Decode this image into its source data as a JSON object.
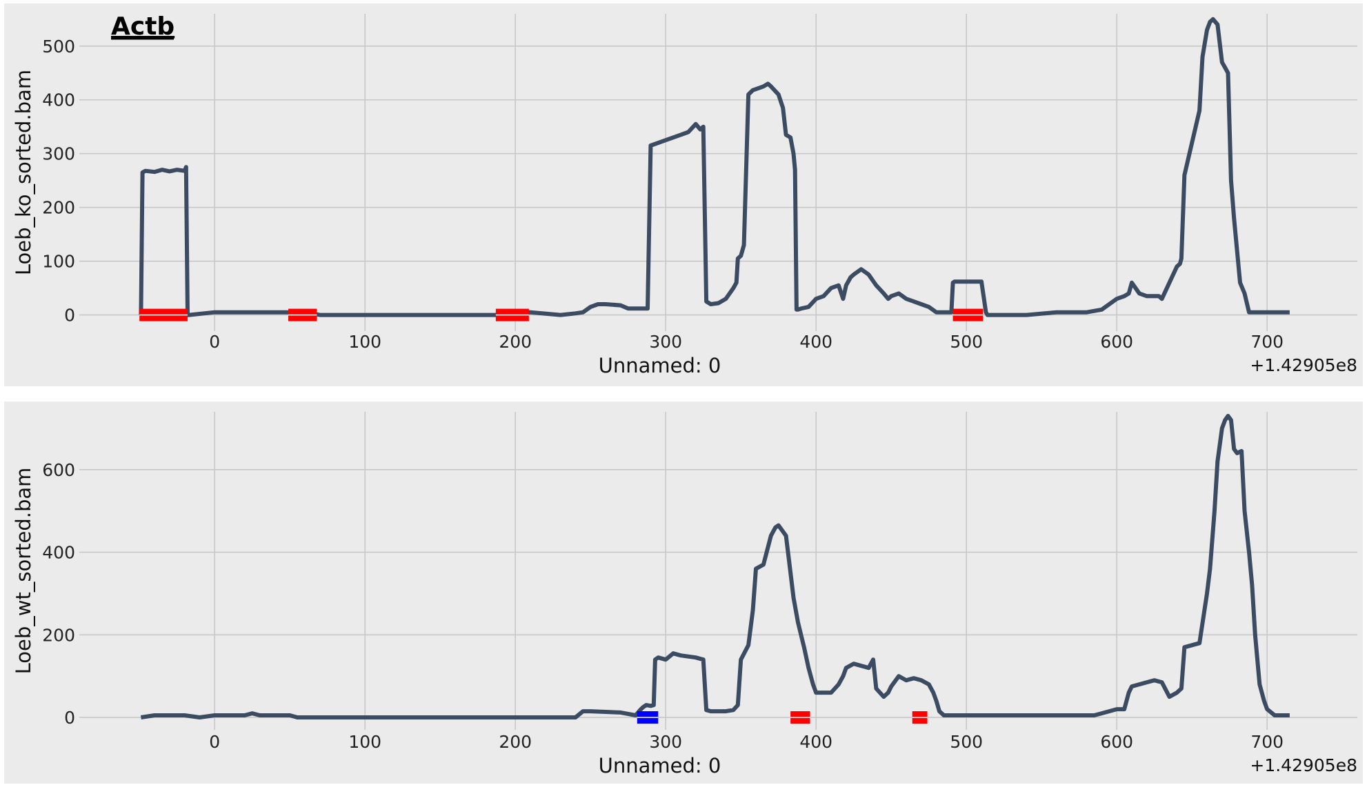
{
  "title": "Actb",
  "chart_data": [
    {
      "type": "line",
      "ylabel": "Loeb_ko_sorted.bam",
      "xlabel": "Unnamed: 0",
      "x_offset_label": "+1.42905e8",
      "xlim": [
        -90,
        760
      ],
      "ylim": [
        -30,
        560
      ],
      "xticks": [
        0,
        100,
        200,
        300,
        400,
        500,
        600,
        700
      ],
      "yticks": [
        0,
        100,
        200,
        300,
        400,
        500
      ],
      "grid": true,
      "line_color": "#3b4b61",
      "series": [
        {
          "x": [
            -49,
            -48,
            -46,
            -40,
            -35,
            -30,
            -25,
            -20,
            -19,
            -18,
            -17,
            0,
            10,
            20,
            30,
            40,
            50,
            60,
            70,
            80,
            100,
            150,
            200,
            210,
            230,
            240,
            245,
            250,
            255,
            260,
            270,
            275,
            280,
            285,
            287,
            288,
            290,
            300,
            310,
            315,
            320,
            323,
            325,
            327,
            330,
            335,
            340,
            345,
            347,
            348,
            350,
            352,
            355,
            358,
            360,
            365,
            368,
            370,
            375,
            378,
            380,
            383,
            385,
            386,
            387,
            388,
            390,
            395,
            400,
            405,
            410,
            415,
            418,
            420,
            423,
            425,
            430,
            435,
            440,
            445,
            448,
            450,
            455,
            460,
            465,
            470,
            475,
            480,
            485,
            490,
            491,
            492,
            495,
            500,
            505,
            510,
            513,
            514,
            515,
            520,
            530,
            540,
            560,
            580,
            590,
            600,
            605,
            608,
            610,
            615,
            620,
            625,
            628,
            630,
            640,
            642,
            643,
            645,
            650,
            655,
            657,
            660,
            662,
            664,
            667,
            670,
            672,
            674,
            676,
            678,
            680,
            682,
            685,
            688,
            690,
            692,
            695,
            698,
            700,
            705,
            715
          ],
          "y": [
            0,
            265,
            268,
            266,
            270,
            267,
            270,
            268,
            275,
            0,
            0,
            5,
            5,
            5,
            5,
            5,
            5,
            5,
            0,
            0,
            0,
            0,
            0,
            5,
            0,
            3,
            5,
            15,
            20,
            20,
            18,
            12,
            12,
            12,
            12,
            12,
            315,
            325,
            335,
            340,
            355,
            345,
            350,
            25,
            20,
            22,
            30,
            50,
            60,
            105,
            110,
            130,
            410,
            418,
            420,
            425,
            430,
            425,
            410,
            385,
            335,
            330,
            300,
            270,
            10,
            10,
            12,
            15,
            30,
            35,
            50,
            55,
            30,
            55,
            70,
            75,
            85,
            75,
            55,
            40,
            30,
            35,
            40,
            30,
            25,
            20,
            15,
            5,
            5,
            5,
            60,
            62,
            62,
            62,
            62,
            62,
            5,
            0,
            0,
            0,
            0,
            0,
            5,
            5,
            10,
            30,
            35,
            40,
            60,
            40,
            35,
            35,
            35,
            30,
            90,
            95,
            105,
            260,
            320,
            380,
            480,
            530,
            545,
            550,
            540,
            470,
            460,
            450,
            250,
            180,
            120,
            60,
            40,
            5,
            5,
            5,
            5,
            5,
            5,
            5,
            5
          ]
        }
      ],
      "markers": [
        {
          "x0": -50,
          "x1": -18,
          "color": "#ff0000"
        },
        {
          "x0": 49,
          "x1": 68,
          "color": "#ff0000"
        },
        {
          "x0": 187,
          "x1": 209,
          "color": "#ff0000"
        },
        {
          "x0": 491,
          "x1": 511,
          "color": "#ff0000"
        }
      ]
    },
    {
      "type": "line",
      "ylabel": "Loeb_wt_sorted.bam",
      "xlabel": "Unnamed: 0",
      "x_offset_label": "+1.42905e8",
      "xlim": [
        -90,
        760
      ],
      "ylim": [
        -30,
        740
      ],
      "xticks": [
        0,
        100,
        200,
        300,
        400,
        500,
        600,
        700
      ],
      "yticks": [
        0,
        200,
        400,
        600
      ],
      "grid": true,
      "line_color": "#3b4b61",
      "series": [
        {
          "x": [
            -49,
            -40,
            -20,
            -10,
            0,
            20,
            25,
            30,
            50,
            55,
            100,
            200,
            240,
            245,
            250,
            270,
            280,
            283,
            285,
            287,
            290,
            292,
            293,
            295,
            300,
            305,
            310,
            320,
            325,
            327,
            330,
            340,
            345,
            348,
            350,
            355,
            358,
            360,
            365,
            370,
            373,
            375,
            380,
            382,
            385,
            388,
            390,
            392,
            395,
            398,
            400,
            410,
            415,
            418,
            420,
            425,
            430,
            435,
            438,
            440,
            445,
            448,
            450,
            455,
            460,
            465,
            470,
            475,
            478,
            480,
            482,
            485,
            490,
            500,
            520,
            550,
            580,
            585,
            590,
            600,
            605,
            608,
            610,
            615,
            620,
            625,
            630,
            635,
            640,
            643,
            645,
            650,
            655,
            660,
            662,
            665,
            667,
            670,
            672,
            674,
            676,
            678,
            680,
            683,
            685,
            688,
            690,
            692,
            695,
            698,
            700,
            705,
            715
          ],
          "y": [
            0,
            5,
            5,
            0,
            5,
            5,
            10,
            5,
            5,
            0,
            0,
            0,
            0,
            15,
            15,
            12,
            5,
            18,
            25,
            30,
            28,
            30,
            140,
            145,
            140,
            155,
            150,
            145,
            140,
            18,
            15,
            15,
            18,
            30,
            140,
            175,
            260,
            360,
            370,
            440,
            460,
            465,
            440,
            380,
            290,
            230,
            200,
            170,
            120,
            80,
            60,
            60,
            80,
            100,
            120,
            130,
            125,
            120,
            140,
            70,
            50,
            60,
            75,
            100,
            90,
            95,
            90,
            80,
            60,
            40,
            15,
            5,
            5,
            5,
            5,
            5,
            5,
            5,
            10,
            20,
            20,
            60,
            75,
            80,
            85,
            90,
            85,
            50,
            60,
            70,
            170,
            175,
            180,
            300,
            360,
            500,
            620,
            700,
            720,
            730,
            720,
            650,
            640,
            645,
            500,
            400,
            320,
            200,
            80,
            40,
            20,
            5,
            5
          ]
        }
      ],
      "markers": [
        {
          "x0": 281,
          "x1": 295,
          "color": "#0000ff"
        },
        {
          "x0": 383,
          "x1": 396,
          "color": "#ff0000"
        },
        {
          "x0": 464,
          "x1": 474,
          "color": "#ff0000"
        }
      ]
    }
  ]
}
